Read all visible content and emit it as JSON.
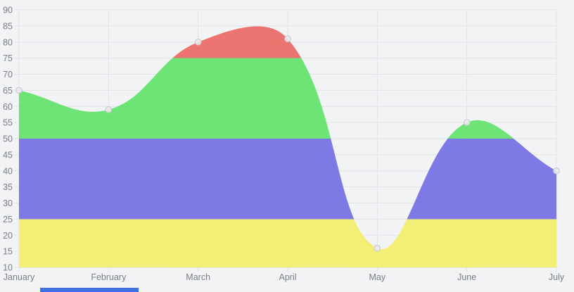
{
  "chart_data": {
    "type": "area",
    "title": "",
    "x_labels": [
      "January",
      "February",
      "March",
      "April",
      "May",
      "June",
      "July"
    ],
    "values": [
      65,
      59,
      80,
      81,
      16,
      55,
      40
    ],
    "ylim": [
      10,
      90
    ],
    "y_ticks": [
      10,
      15,
      20,
      25,
      30,
      35,
      40,
      45,
      50,
      55,
      60,
      65,
      70,
      75,
      80,
      85,
      90
    ],
    "grid": true,
    "legend_position": "none",
    "curve": "spline-tension-0.4",
    "bands": [
      {
        "from": 10,
        "to": 25,
        "color": "#f3ee6d",
        "name": "yellow-band"
      },
      {
        "from": 25,
        "to": 50,
        "color": "#7571e4",
        "name": "blue-band"
      },
      {
        "from": 50,
        "to": 75,
        "color": "#64e26c",
        "name": "green-band"
      },
      {
        "from": 75,
        "to": 90,
        "color": "#ec6b66",
        "name": "red-band"
      }
    ]
  },
  "style": {
    "background": "#f2f3f5",
    "grid_color": "#e3e4e8",
    "axis_line_color": "#d8d9dd",
    "tick_label_color": "#797d84",
    "point_fill": "#e9e9eb",
    "point_stroke": "#c7c7cc"
  },
  "page": {
    "bottom_bar_color": "#4170e2"
  }
}
